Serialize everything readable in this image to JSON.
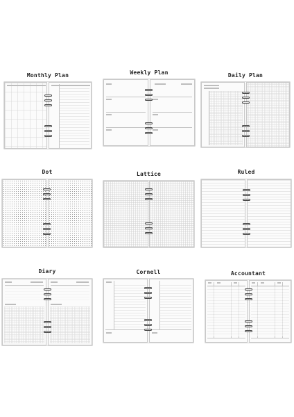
{
  "templates": [
    {
      "id": "monthly",
      "title": "Monthly Plan",
      "pattern": "monthly"
    },
    {
      "id": "weekly",
      "title": "Weekly Plan",
      "pattern": "weekly"
    },
    {
      "id": "daily",
      "title": "Daily Plan",
      "pattern": "daily"
    },
    {
      "id": "dot",
      "title": "Dot",
      "pattern": "dot"
    },
    {
      "id": "lattice",
      "title": "Lattice",
      "pattern": "lattice"
    },
    {
      "id": "ruled",
      "title": "Ruled",
      "pattern": "ruled"
    },
    {
      "id": "diary",
      "title": "Diary",
      "pattern": "diary"
    },
    {
      "id": "cornell",
      "title": "Cornell",
      "pattern": "cornell"
    },
    {
      "id": "accountant",
      "title": "Accountant",
      "pattern": "accountant"
    }
  ]
}
